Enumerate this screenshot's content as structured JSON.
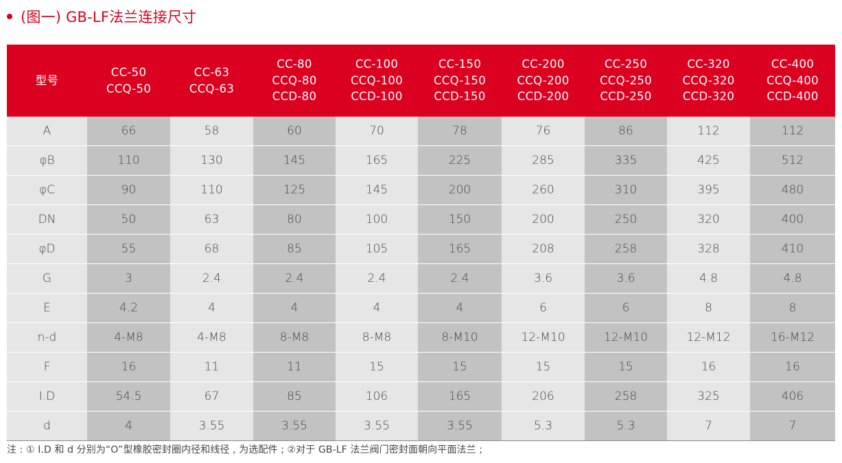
{
  "title": "(图一) GB-LF法兰连接尺寸",
  "table": {
    "corner_label": "型号",
    "models": [
      [
        "CC-50",
        "CCQ-50"
      ],
      [
        "CC-63",
        "CCQ-63"
      ],
      [
        "CC-80",
        "CCQ-80",
        "CCD-80"
      ],
      [
        "CC-100",
        "CCQ-100",
        "CCD-100"
      ],
      [
        "CC-150",
        "CCQ-150",
        "CCD-150"
      ],
      [
        "CC-200",
        "CCQ-200",
        "CCD-200"
      ],
      [
        "CC-250",
        "CCQ-250",
        "CCD-250"
      ],
      [
        "CC-320",
        "CCQ-320",
        "CCD-320"
      ],
      [
        "CC-400",
        "CCQ-400",
        "CCD-400"
      ]
    ],
    "rows": [
      {
        "label": "A",
        "values": [
          "66",
          "58",
          "60",
          "70",
          "78",
          "76",
          "86",
          "112",
          "112"
        ]
      },
      {
        "label": "φB",
        "values": [
          "110",
          "130",
          "145",
          "165",
          "225",
          "285",
          "335",
          "425",
          "512"
        ]
      },
      {
        "label": "φC",
        "values": [
          "90",
          "110",
          "125",
          "145",
          "200",
          "260",
          "310",
          "395",
          "480"
        ]
      },
      {
        "label": "DN",
        "values": [
          "50",
          "63",
          "80",
          "100",
          "150",
          "200",
          "250",
          "320",
          "400"
        ]
      },
      {
        "label": "φD",
        "values": [
          "55",
          "68",
          "85",
          "105",
          "165",
          "208",
          "258",
          "328",
          "410"
        ]
      },
      {
        "label": "G",
        "values": [
          "3",
          "2.4",
          "2.4",
          "2.4",
          "2.4",
          "3.6",
          "3.6",
          "4.8",
          "4.8"
        ]
      },
      {
        "label": "E",
        "values": [
          "4.2",
          "4",
          "4",
          "4",
          "4",
          "6",
          "6",
          "8",
          "8"
        ]
      },
      {
        "label": "n-d",
        "values": [
          "4-M8",
          "4-M8",
          "8-M8",
          "8-M8",
          "8-M10",
          "12-M10",
          "12-M10",
          "12-M12",
          "16-M12"
        ]
      },
      {
        "label": "F",
        "values": [
          "16",
          "11",
          "11",
          "15",
          "15",
          "15",
          "15",
          "16",
          "16"
        ]
      },
      {
        "label": "I.D",
        "values": [
          "54.5",
          "67",
          "85",
          "106",
          "165",
          "206",
          "258",
          "325",
          "406"
        ]
      },
      {
        "label": "d",
        "values": [
          "4",
          "3.55",
          "3.55",
          "3.55",
          "3.55",
          "5.3",
          "5.3",
          "7",
          "7"
        ]
      }
    ]
  },
  "note": "注 : ① I.D 和 d 分别为“O”型橡胶密封圈内径和线径 , 为选配件 ; ②对于 GB-LF 法兰阀门密封面朝向平面法兰 ;",
  "colors": {
    "accent": "#d9001b",
    "header_bg": "#dc0020",
    "cell_light": "#e6e6e6",
    "cell_dark": "#c2c2c2"
  }
}
